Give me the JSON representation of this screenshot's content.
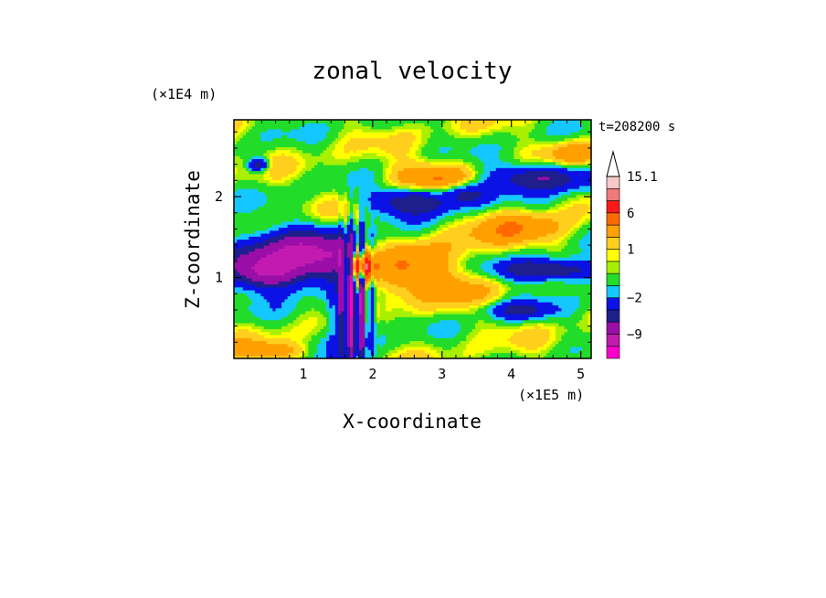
{
  "chart_data": {
    "type": "heatmap",
    "title": "zonal velocity",
    "xlabel": "X-coordinate",
    "ylabel": "Z-coordinate",
    "x_unit": "(×1E5 m)",
    "y_unit": "(×1E4 m)",
    "time_label": "t=208200 s",
    "xlim": [
      0,
      5.15
    ],
    "ylim": [
      0,
      2.95
    ],
    "x_ticks": [
      1,
      2,
      3,
      4,
      5
    ],
    "y_ticks": [
      1,
      2
    ],
    "colorbar": {
      "levels": [
        {
          "min": -15,
          "max": -12,
          "color": "#ff00cc"
        },
        {
          "min": -12,
          "max": -9,
          "color": "#c21bb0"
        },
        {
          "min": -9,
          "max": -6,
          "color": "#9a0ea8"
        },
        {
          "min": -6,
          "max": -4,
          "color": "#1e1e8c"
        },
        {
          "min": -4,
          "max": -2,
          "color": "#0a12e6"
        },
        {
          "min": -2,
          "max": -1,
          "color": "#14c8ff"
        },
        {
          "min": -1,
          "max": 0,
          "color": "#22dc2a"
        },
        {
          "min": 0,
          "max": 0.5,
          "color": "#a8f000"
        },
        {
          "min": 0.5,
          "max": 1,
          "color": "#ffff00"
        },
        {
          "min": 1,
          "max": 2,
          "color": "#ffcf1e"
        },
        {
          "min": 2,
          "max": 4,
          "color": "#ffa000"
        },
        {
          "min": 4,
          "max": 6,
          "color": "#ff6a00"
        },
        {
          "min": 6,
          "max": 9,
          "color": "#ff1a1a"
        },
        {
          "min": 9,
          "max": 12,
          "color": "#f07a7a"
        },
        {
          "min": 12,
          "max": 15.1,
          "color": "#f8c8c8"
        }
      ],
      "labels": [
        "15.1",
        "6",
        "1",
        "−2",
        "−9"
      ],
      "label_values": [
        15.1,
        6,
        1,
        -2,
        -9
      ],
      "extend": "max"
    },
    "features": [
      {
        "kind": "negative",
        "x": 1.05,
        "z": 1.25,
        "sx": 0.75,
        "sz": 0.22,
        "amp": -10
      },
      {
        "kind": "negative",
        "x": 0.45,
        "z": 1.05,
        "sx": 0.3,
        "sz": 0.14,
        "amp": -6
      },
      {
        "kind": "negative",
        "x": 1.72,
        "z": 0.55,
        "sx": 0.18,
        "sz": 0.4,
        "amp": -9
      },
      {
        "kind": "negative",
        "x": 2.55,
        "z": 1.95,
        "sx": 0.45,
        "sz": 0.12,
        "amp": -6
      },
      {
        "kind": "negative",
        "x": 3.35,
        "z": 2.05,
        "sx": 0.25,
        "sz": 0.1,
        "amp": -5
      },
      {
        "kind": "negative",
        "x": 4.4,
        "z": 2.25,
        "sx": 0.6,
        "sz": 0.12,
        "amp": -6
      },
      {
        "kind": "negative",
        "x": 4.55,
        "z": 1.1,
        "sx": 0.55,
        "sz": 0.1,
        "amp": -7
      },
      {
        "kind": "negative",
        "x": 4.1,
        "z": 0.6,
        "sx": 0.35,
        "sz": 0.08,
        "amp": -4
      },
      {
        "kind": "negative",
        "x": 0.35,
        "z": 2.4,
        "sx": 0.1,
        "sz": 0.06,
        "amp": -6
      },
      {
        "kind": "positive",
        "x": 2.3,
        "z": 1.1,
        "sx": 0.45,
        "sz": 0.22,
        "amp": 6
      },
      {
        "kind": "positive",
        "x": 1.85,
        "z": 1.15,
        "sx": 0.12,
        "sz": 0.14,
        "amp": 10
      },
      {
        "kind": "positive",
        "x": 2.9,
        "z": 2.25,
        "sx": 0.5,
        "sz": 0.14,
        "amp": 4
      },
      {
        "kind": "positive",
        "x": 4.9,
        "z": 2.55,
        "sx": 0.3,
        "sz": 0.12,
        "amp": 3
      },
      {
        "kind": "positive",
        "x": 3.3,
        "z": 1.1,
        "sx": 0.35,
        "sz": 0.35,
        "amp": 2
      },
      {
        "kind": "positive",
        "x": 0.5,
        "z": 0.1,
        "sx": 0.4,
        "sz": 0.08,
        "amp": 3
      },
      {
        "kind": "positive",
        "x": 4.2,
        "z": 1.6,
        "sx": 0.5,
        "sz": 0.15,
        "amp": 3
      }
    ]
  }
}
